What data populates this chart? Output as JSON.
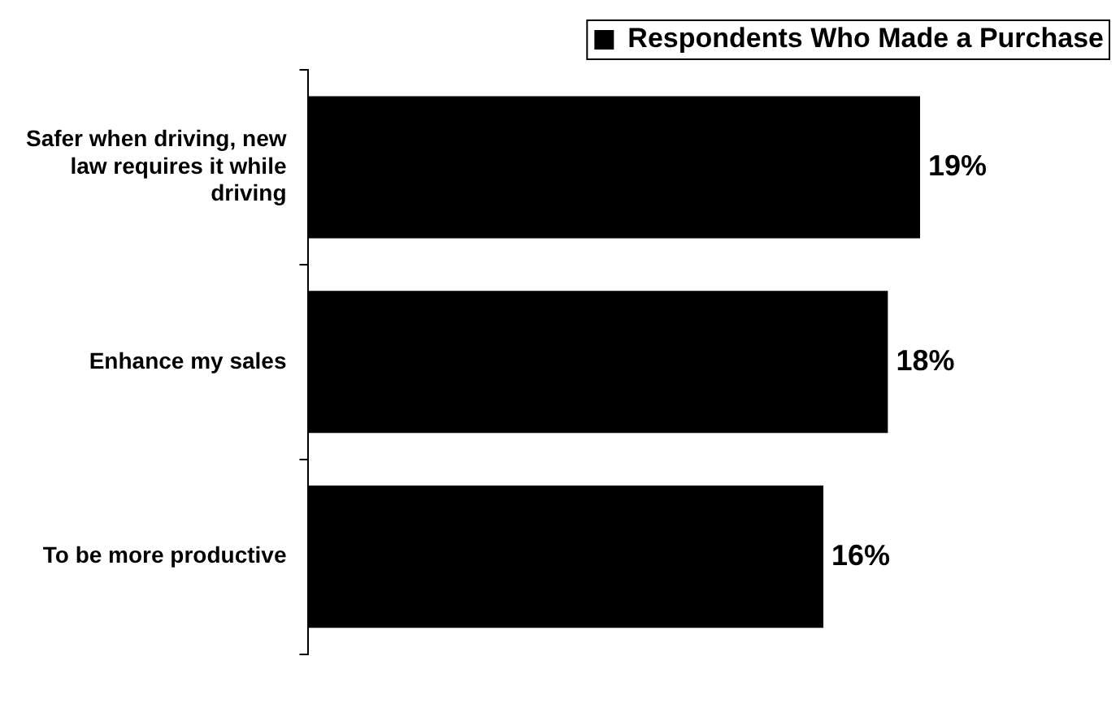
{
  "chart_data": {
    "type": "bar",
    "orientation": "horizontal",
    "categories": [
      "Safer when driving, new law requires it while driving",
      "Enhance my sales",
      "To be more productive"
    ],
    "series": [
      {
        "name": "Respondents Who Made a Purchase",
        "color": "#000000",
        "values": [
          19,
          18,
          16
        ],
        "value_labels": [
          "19%",
          "18%",
          "16%"
        ]
      }
    ],
    "tick_labels": "y",
    "grid": false,
    "legend": "top right"
  }
}
